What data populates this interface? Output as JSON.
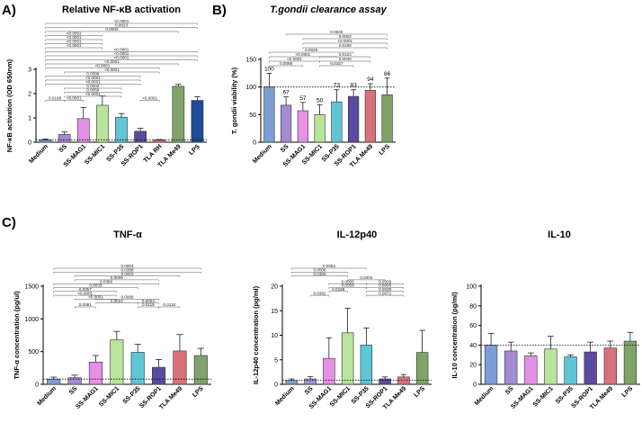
{
  "figure": {
    "panel_a_letter": "A)",
    "panel_b_letter": "B)",
    "panel_c_letter": "C)"
  },
  "chart_data": [
    {
      "id": "A",
      "type": "bar",
      "title": "Relative NF-κB activation",
      "title_italic": false,
      "ylabel": "NF-κB activation (OD 650nm)",
      "ylim": [
        0,
        3
      ],
      "yticks": [
        0,
        1,
        2,
        3
      ],
      "categories": [
        "Medium",
        "SS",
        "SS-MAG1",
        "SS-MIC1",
        "SS-P35",
        "SS-ROP1",
        "TLA RH",
        "TLA Me49",
        "LPS"
      ],
      "values": [
        0.1,
        0.32,
        0.97,
        1.52,
        1.03,
        0.45,
        0.09,
        2.3,
        1.72
      ],
      "errors": [
        0.03,
        0.1,
        0.45,
        0.38,
        0.15,
        0.12,
        0.02,
        0.08,
        0.15
      ],
      "colors": [
        "#7b9fd4",
        "#a48bd4",
        "#e591e6",
        "#b9e49b",
        "#5fc6d6",
        "#5b4ba0",
        "#d9717a",
        "#7fa368",
        "#1e4a99"
      ],
      "reference_line": 0.1,
      "data_labels": [],
      "significance": [
        {
          "from": 0,
          "to": 1,
          "label": "0.0108",
          "level": 0
        },
        {
          "from": 1,
          "to": 2,
          "label": "<0.0001",
          "level": 0
        },
        {
          "from": 5,
          "to": 6,
          "label": "<0.0001",
          "level": 0
        },
        {
          "from": 1,
          "to": 4,
          "label": "<0.0001",
          "level": 1
        },
        {
          "from": 1,
          "to": 4,
          "label": "0.0059",
          "level": 2
        },
        {
          "from": 1,
          "to": 4,
          "label": "0.0002",
          "level": 3
        },
        {
          "from": 0,
          "to": 5,
          "label": "<0.0001",
          "level": 4
        },
        {
          "from": 0,
          "to": 5,
          "label": "<0.0001",
          "level": 5
        },
        {
          "from": 0,
          "to": 5,
          "label": "0.0396",
          "level": 6
        },
        {
          "from": 1,
          "to": 6,
          "label": "<0.0001",
          "level": 7
        },
        {
          "from": 0,
          "to": 6,
          "label": "<0.0001",
          "level": 8
        },
        {
          "from": 0,
          "to": 7,
          "label": "<0.0001",
          "level": 9
        },
        {
          "from": 0,
          "to": 8,
          "label": "<0.0001",
          "level": 10
        },
        {
          "from": 0,
          "to": 8,
          "label": "<0.0001",
          "level": 11
        },
        {
          "from": 0,
          "to": 8,
          "label": "<0.0001",
          "level": 12
        },
        {
          "from": 0,
          "to": 3,
          "label": "<0.0001",
          "level": 13
        },
        {
          "from": 0,
          "to": 3,
          "label": "<0.0001",
          "level": 14
        },
        {
          "from": 0,
          "to": 3,
          "label": "<0.0001",
          "level": 15
        },
        {
          "from": 0,
          "to": 3,
          "label": "<0.0001",
          "level": 16
        },
        {
          "from": 0,
          "to": 7,
          "label": "0.0003",
          "level": 17
        },
        {
          "from": 0,
          "to": 8,
          "label": "0.0023",
          "level": 18
        },
        {
          "from": 0,
          "to": 8,
          "label": "<0.0001",
          "level": 19
        }
      ]
    },
    {
      "id": "B",
      "type": "bar",
      "title": "T.gondii clearance assay",
      "title_italic": true,
      "ylabel": "T. gondii viability (%)",
      "ylim": [
        0,
        150
      ],
      "yticks": [
        0,
        50,
        100,
        150
      ],
      "categories": [
        "Medium",
        "SS",
        "SS-MAG1",
        "SS-MIC1",
        "SS-P35",
        "SS-ROP1",
        "TLA Me49",
        "LPS"
      ],
      "values": [
        100,
        67,
        57,
        50,
        73,
        83,
        94,
        86
      ],
      "errors": [
        25,
        15,
        15,
        18,
        22,
        12,
        12,
        30
      ],
      "colors": [
        "#7b9fd4",
        "#a48bd4",
        "#e591e6",
        "#b9e49b",
        "#5fc6d6",
        "#5b4ba0",
        "#d9717a",
        "#7fa368"
      ],
      "reference_line": 100,
      "data_labels": [
        "100",
        "67",
        "57",
        "50",
        "73",
        "83",
        "94",
        "86"
      ],
      "significance": [
        {
          "from": 0,
          "to": 2,
          "label": "0.0088",
          "level": 0
        },
        {
          "from": 0,
          "to": 3,
          "label": "<0.0001",
          "level": 1
        },
        {
          "from": 0,
          "to": 4,
          "label": "<0.0001",
          "level": 2
        },
        {
          "from": 0,
          "to": 5,
          "label": "0.0049",
          "level": 3
        },
        {
          "from": 3,
          "to": 5,
          "label": "0.0157",
          "level": 0
        },
        {
          "from": 3,
          "to": 6,
          "label": "0.0040",
          "level": 1
        },
        {
          "from": 3,
          "to": 6,
          "label": "0.0124",
          "level": 2
        },
        {
          "from": 2,
          "to": 7,
          "label": "0.0190",
          "level": 4
        },
        {
          "from": 2,
          "to": 7,
          "label": "<0.0001",
          "level": 5
        },
        {
          "from": 2,
          "to": 7,
          "label": "0.0002",
          "level": 6
        },
        {
          "from": 1,
          "to": 7,
          "label": "0.0040",
          "level": 7
        }
      ]
    },
    {
      "id": "C1",
      "type": "bar",
      "title": "TNF-α",
      "title_italic": false,
      "ylabel": "TNF-α concentration (pg/ul)",
      "ylim": [
        0,
        1500
      ],
      "yticks": [
        0,
        500,
        1000,
        1500
      ],
      "categories": [
        "Medium",
        "SS",
        "SS-MAG1",
        "SS-MIC1",
        "SS-P35",
        "SS-ROP1",
        "TLA Me49",
        "LPS"
      ],
      "values": [
        80,
        100,
        340,
        680,
        490,
        260,
        510,
        440
      ],
      "errors": [
        30,
        40,
        100,
        130,
        120,
        120,
        250,
        110
      ],
      "colors": [
        "#7b9fd4",
        "#a48bd4",
        "#e591e6",
        "#b9e49b",
        "#5fc6d6",
        "#5b4ba0",
        "#d9717a",
        "#7fa368"
      ],
      "reference_line": 80,
      "data_labels": [],
      "significance": [
        {
          "from": 1,
          "to": 2,
          "label": "0.0081",
          "level": 0
        },
        {
          "from": 4,
          "to": 5,
          "label": "0.0118",
          "level": 0
        },
        {
          "from": 5,
          "to": 6,
          "label": "0.0118",
          "level": 0
        },
        {
          "from": 2,
          "to": 4,
          "label": "0.0024",
          "level": 1
        },
        {
          "from": 4,
          "to": 5,
          "label": "0.0004",
          "level": 1
        },
        {
          "from": 1,
          "to": 3,
          "label": "<0.0001",
          "level": 2
        },
        {
          "from": 2,
          "to": 5,
          "label": "0.0098",
          "level": 2
        },
        {
          "from": 0,
          "to": 3,
          "label": "<0.0001",
          "level": 3
        },
        {
          "from": 0,
          "to": 3,
          "label": "0.0057",
          "level": 4
        },
        {
          "from": 0,
          "to": 4,
          "label": "0.0033",
          "level": 5
        },
        {
          "from": 0,
          "to": 5,
          "label": "0.0380",
          "level": 6
        },
        {
          "from": 1,
          "to": 5,
          "label": "0.0009",
          "level": 7
        },
        {
          "from": 1,
          "to": 6,
          "label": "0.0003",
          "level": 8
        },
        {
          "from": 0,
          "to": 7,
          "label": "0.0398",
          "level": 9
        },
        {
          "from": 0,
          "to": 7,
          "label": "0.0004",
          "level": 10
        }
      ]
    },
    {
      "id": "C2",
      "type": "bar",
      "title": "IL-12p40",
      "title_italic": false,
      "ylabel": "IL-12p40 concentration (pg/ml)",
      "ylim": [
        0,
        20
      ],
      "yticks": [
        0,
        5,
        10,
        15,
        20
      ],
      "categories": [
        "Medium",
        "SS",
        "SS-MAG1",
        "SS-MIC1",
        "SS-P35",
        "SS-ROP1",
        "TLA Me49",
        "LPS"
      ],
      "values": [
        0.8,
        1.1,
        5.3,
        10.5,
        8.0,
        1.1,
        1.5,
        6.5
      ],
      "errors": [
        0.3,
        0.5,
        4.2,
        5.0,
        3.5,
        0.4,
        0.5,
        4.5
      ],
      "colors": [
        "#7b9fd4",
        "#a48bd4",
        "#e591e6",
        "#b9e49b",
        "#5fc6d6",
        "#5b4ba0",
        "#d9717a",
        "#7fa368"
      ],
      "reference_line": 0.8,
      "data_labels": [],
      "significance": [
        {
          "from": 1,
          "to": 2,
          "label": "0.0382",
          "level": 0
        },
        {
          "from": 4,
          "to": 6,
          "label": "0.0672",
          "level": 0
        },
        {
          "from": 4,
          "to": 6,
          "label": "0.0039",
          "level": 1
        },
        {
          "from": 2,
          "to": 3,
          "label": "0.0199",
          "level": 1
        },
        {
          "from": 2,
          "to": 4,
          "label": "0.0059",
          "level": 2
        },
        {
          "from": 4,
          "to": 6,
          "label": "0.0008",
          "level": 2
        },
        {
          "from": 2,
          "to": 4,
          "label": "0.0006",
          "level": 3
        },
        {
          "from": 4,
          "to": 6,
          "label": "0.0009",
          "level": 3
        },
        {
          "from": 3,
          "to": 5,
          "label": "0.0404",
          "level": 4
        },
        {
          "from": 0,
          "to": 3,
          "label": "0.0386",
          "level": 5
        },
        {
          "from": 0,
          "to": 3,
          "label": "0.0006",
          "level": 6
        },
        {
          "from": 0,
          "to": 4,
          "label": "0.0053",
          "level": 7
        }
      ]
    },
    {
      "id": "C3",
      "type": "bar",
      "title": "IL-10",
      "title_italic": false,
      "ylabel": "IL-10 concentration (pg/ml)",
      "ylim": [
        0,
        100
      ],
      "yticks": [
        0,
        20,
        40,
        60,
        80,
        100
      ],
      "categories": [
        "Medium",
        "SS",
        "SS-MAG1",
        "SS-MIC1",
        "SS-P35",
        "SS-ROP1",
        "TLA Me49",
        "LPS"
      ],
      "values": [
        40,
        34,
        29,
        36,
        28,
        33,
        37,
        44
      ],
      "errors": [
        12,
        9,
        3,
        13,
        2,
        10,
        7,
        9
      ],
      "colors": [
        "#7b9fd4",
        "#a48bd4",
        "#e591e6",
        "#b9e49b",
        "#5fc6d6",
        "#5b4ba0",
        "#d9717a",
        "#7fa368"
      ],
      "reference_line": 40,
      "data_labels": [],
      "significance": []
    }
  ]
}
